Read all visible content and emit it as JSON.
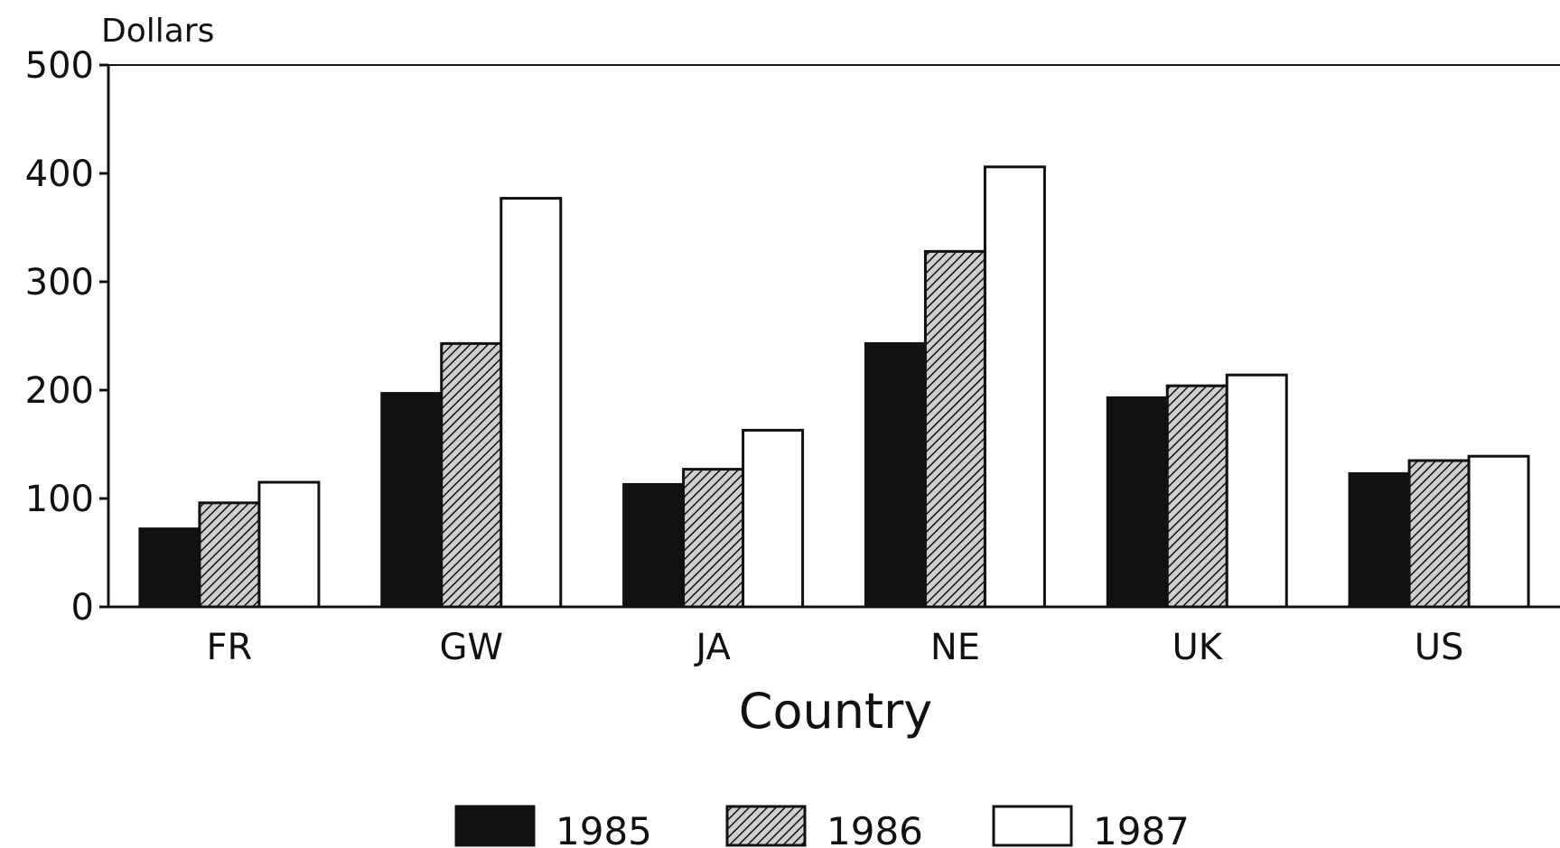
{
  "chart_data": {
    "type": "bar",
    "ylabel": "Dollars",
    "xlabel": "Country",
    "categories": [
      "FR",
      "GW",
      "JA",
      "NE",
      "UK",
      "US"
    ],
    "series": [
      {
        "name": "1985",
        "values": [
          72,
          197,
          113,
          243,
          193,
          123
        ],
        "color": "#111111",
        "pattern": "solid"
      },
      {
        "name": "1986",
        "values": [
          96,
          243,
          127,
          328,
          204,
          135
        ],
        "color": "#555555",
        "pattern": "hatched"
      },
      {
        "name": "1987",
        "values": [
          115,
          377,
          163,
          406,
          214,
          139
        ],
        "color": "#ffffff",
        "pattern": "empty"
      }
    ],
    "ylim": [
      0,
      500
    ],
    "yticks": [
      0,
      100,
      200,
      300,
      400,
      500
    ],
    "grid": false,
    "legend_position": "bottom"
  }
}
